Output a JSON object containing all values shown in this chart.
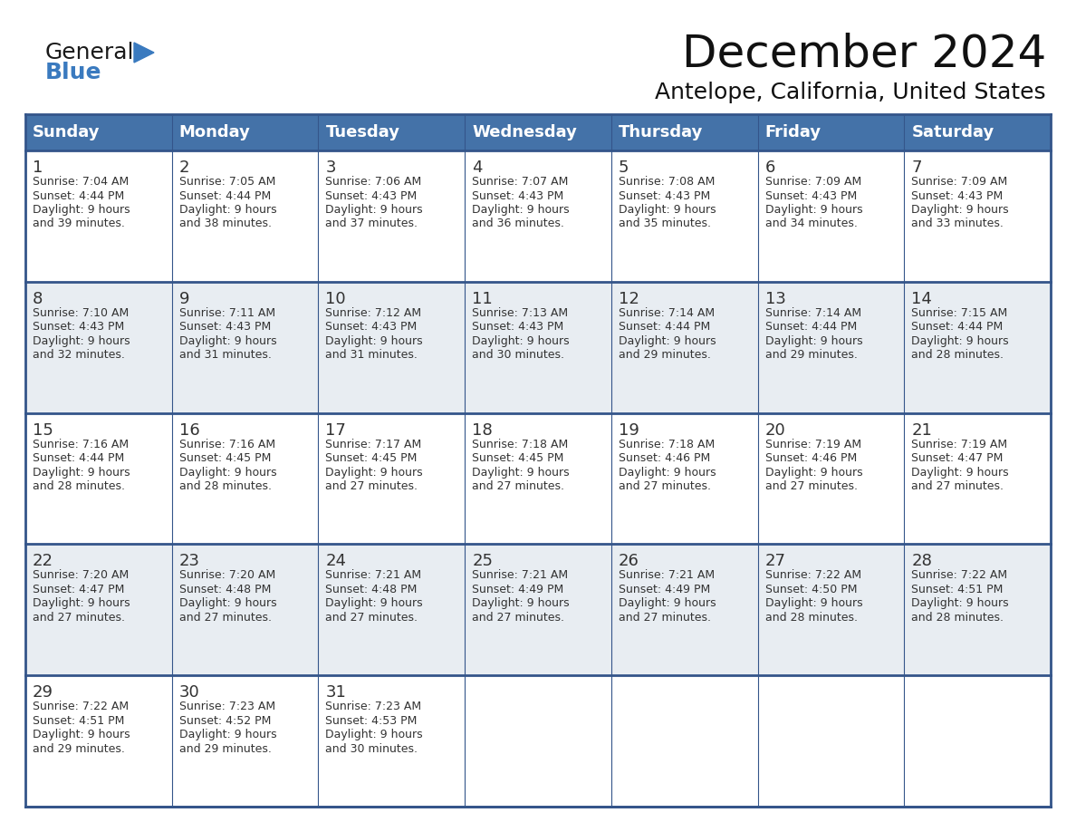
{
  "title": "December 2024",
  "subtitle": "Antelope, California, United States",
  "header_bg_color": "#4472a8",
  "header_text_color": "#ffffff",
  "row_bg_white": "#ffffff",
  "row_bg_gray": "#e8edf2",
  "border_color": "#34558a",
  "text_color": "#333333",
  "days_of_week": [
    "Sunday",
    "Monday",
    "Tuesday",
    "Wednesday",
    "Thursday",
    "Friday",
    "Saturday"
  ],
  "calendar_data": [
    [
      {
        "day": "1",
        "sunrise": "7:04 AM",
        "sunset": "4:44 PM",
        "daylight_h": "Daylight: 9 hours",
        "daylight_m": "and 39 minutes."
      },
      {
        "day": "2",
        "sunrise": "7:05 AM",
        "sunset": "4:44 PM",
        "daylight_h": "Daylight: 9 hours",
        "daylight_m": "and 38 minutes."
      },
      {
        "day": "3",
        "sunrise": "7:06 AM",
        "sunset": "4:43 PM",
        "daylight_h": "Daylight: 9 hours",
        "daylight_m": "and 37 minutes."
      },
      {
        "day": "4",
        "sunrise": "7:07 AM",
        "sunset": "4:43 PM",
        "daylight_h": "Daylight: 9 hours",
        "daylight_m": "and 36 minutes."
      },
      {
        "day": "5",
        "sunrise": "7:08 AM",
        "sunset": "4:43 PM",
        "daylight_h": "Daylight: 9 hours",
        "daylight_m": "and 35 minutes."
      },
      {
        "day": "6",
        "sunrise": "7:09 AM",
        "sunset": "4:43 PM",
        "daylight_h": "Daylight: 9 hours",
        "daylight_m": "and 34 minutes."
      },
      {
        "day": "7",
        "sunrise": "7:09 AM",
        "sunset": "4:43 PM",
        "daylight_h": "Daylight: 9 hours",
        "daylight_m": "and 33 minutes."
      }
    ],
    [
      {
        "day": "8",
        "sunrise": "7:10 AM",
        "sunset": "4:43 PM",
        "daylight_h": "Daylight: 9 hours",
        "daylight_m": "and 32 minutes."
      },
      {
        "day": "9",
        "sunrise": "7:11 AM",
        "sunset": "4:43 PM",
        "daylight_h": "Daylight: 9 hours",
        "daylight_m": "and 31 minutes."
      },
      {
        "day": "10",
        "sunrise": "7:12 AM",
        "sunset": "4:43 PM",
        "daylight_h": "Daylight: 9 hours",
        "daylight_m": "and 31 minutes."
      },
      {
        "day": "11",
        "sunrise": "7:13 AM",
        "sunset": "4:43 PM",
        "daylight_h": "Daylight: 9 hours",
        "daylight_m": "and 30 minutes."
      },
      {
        "day": "12",
        "sunrise": "7:14 AM",
        "sunset": "4:44 PM",
        "daylight_h": "Daylight: 9 hours",
        "daylight_m": "and 29 minutes."
      },
      {
        "day": "13",
        "sunrise": "7:14 AM",
        "sunset": "4:44 PM",
        "daylight_h": "Daylight: 9 hours",
        "daylight_m": "and 29 minutes."
      },
      {
        "day": "14",
        "sunrise": "7:15 AM",
        "sunset": "4:44 PM",
        "daylight_h": "Daylight: 9 hours",
        "daylight_m": "and 28 minutes."
      }
    ],
    [
      {
        "day": "15",
        "sunrise": "7:16 AM",
        "sunset": "4:44 PM",
        "daylight_h": "Daylight: 9 hours",
        "daylight_m": "and 28 minutes."
      },
      {
        "day": "16",
        "sunrise": "7:16 AM",
        "sunset": "4:45 PM",
        "daylight_h": "Daylight: 9 hours",
        "daylight_m": "and 28 minutes."
      },
      {
        "day": "17",
        "sunrise": "7:17 AM",
        "sunset": "4:45 PM",
        "daylight_h": "Daylight: 9 hours",
        "daylight_m": "and 27 minutes."
      },
      {
        "day": "18",
        "sunrise": "7:18 AM",
        "sunset": "4:45 PM",
        "daylight_h": "Daylight: 9 hours",
        "daylight_m": "and 27 minutes."
      },
      {
        "day": "19",
        "sunrise": "7:18 AM",
        "sunset": "4:46 PM",
        "daylight_h": "Daylight: 9 hours",
        "daylight_m": "and 27 minutes."
      },
      {
        "day": "20",
        "sunrise": "7:19 AM",
        "sunset": "4:46 PM",
        "daylight_h": "Daylight: 9 hours",
        "daylight_m": "and 27 minutes."
      },
      {
        "day": "21",
        "sunrise": "7:19 AM",
        "sunset": "4:47 PM",
        "daylight_h": "Daylight: 9 hours",
        "daylight_m": "and 27 minutes."
      }
    ],
    [
      {
        "day": "22",
        "sunrise": "7:20 AM",
        "sunset": "4:47 PM",
        "daylight_h": "Daylight: 9 hours",
        "daylight_m": "and 27 minutes."
      },
      {
        "day": "23",
        "sunrise": "7:20 AM",
        "sunset": "4:48 PM",
        "daylight_h": "Daylight: 9 hours",
        "daylight_m": "and 27 minutes."
      },
      {
        "day": "24",
        "sunrise": "7:21 AM",
        "sunset": "4:48 PM",
        "daylight_h": "Daylight: 9 hours",
        "daylight_m": "and 27 minutes."
      },
      {
        "day": "25",
        "sunrise": "7:21 AM",
        "sunset": "4:49 PM",
        "daylight_h": "Daylight: 9 hours",
        "daylight_m": "and 27 minutes."
      },
      {
        "day": "26",
        "sunrise": "7:21 AM",
        "sunset": "4:49 PM",
        "daylight_h": "Daylight: 9 hours",
        "daylight_m": "and 27 minutes."
      },
      {
        "day": "27",
        "sunrise": "7:22 AM",
        "sunset": "4:50 PM",
        "daylight_h": "Daylight: 9 hours",
        "daylight_m": "and 28 minutes."
      },
      {
        "day": "28",
        "sunrise": "7:22 AM",
        "sunset": "4:51 PM",
        "daylight_h": "Daylight: 9 hours",
        "daylight_m": "and 28 minutes."
      }
    ],
    [
      {
        "day": "29",
        "sunrise": "7:22 AM",
        "sunset": "4:51 PM",
        "daylight_h": "Daylight: 9 hours",
        "daylight_m": "and 29 minutes."
      },
      {
        "day": "30",
        "sunrise": "7:23 AM",
        "sunset": "4:52 PM",
        "daylight_h": "Daylight: 9 hours",
        "daylight_m": "and 29 minutes."
      },
      {
        "day": "31",
        "sunrise": "7:23 AM",
        "sunset": "4:53 PM",
        "daylight_h": "Daylight: 9 hours",
        "daylight_m": "and 30 minutes."
      },
      null,
      null,
      null,
      null
    ]
  ],
  "logo_general_color": "#1a1a1a",
  "logo_blue_color": "#3a7abf",
  "logo_triangle_color": "#3a7abf",
  "title_fontsize": 36,
  "subtitle_fontsize": 18,
  "header_fontsize": 13,
  "day_num_fontsize": 13,
  "cell_text_fontsize": 9
}
